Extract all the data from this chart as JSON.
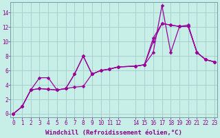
{
  "xlabel": "Windchill (Refroidissement éolien,°C)",
  "bg_color": "#c8eee8",
  "grid_color": "#a0ccc8",
  "line_color": "#990099",
  "xlim": [
    -0.3,
    23.3
  ],
  "ylim": [
    -0.5,
    15.5
  ],
  "xtick_vals": [
    0,
    1,
    2,
    3,
    4,
    5,
    6,
    7,
    8,
    9,
    10,
    11,
    12,
    14,
    15,
    16,
    17,
    18,
    19,
    20,
    21,
    22,
    23
  ],
  "xtick_labels": [
    "0",
    "1",
    "2",
    "3",
    "4",
    "5",
    "6",
    "7",
    "8",
    "9",
    "101112",
    "",
    "",
    "1415161718192021",
    "",
    "",
    "",
    "",
    "",
    "",
    "",
    "2223"
  ],
  "yticks": [
    0,
    2,
    4,
    6,
    8,
    10,
    12,
    14
  ],
  "series1_x": [
    0,
    1,
    2,
    3,
    4,
    5,
    6,
    7,
    8,
    9,
    10,
    11,
    12,
    14,
    15,
    16,
    17,
    18,
    19,
    20,
    21,
    22,
    23
  ],
  "series1_y": [
    0,
    1,
    3.3,
    3.5,
    3.4,
    3.3,
    3.5,
    3.7,
    3.8,
    5.5,
    6.0,
    6.2,
    6.5,
    6.6,
    6.8,
    10.5,
    12.5,
    12.3,
    12.1,
    12.1,
    8.5,
    7.5,
    7.2
  ],
  "series2_x": [
    0,
    1,
    2,
    3,
    4,
    5,
    6,
    7,
    8,
    9,
    10,
    11,
    12,
    14,
    15,
    16,
    17,
    18,
    19,
    20,
    21,
    22,
    23
  ],
  "series2_y": [
    0,
    1,
    3.3,
    5.0,
    5.0,
    3.3,
    3.5,
    5.5,
    8.0,
    5.5,
    6.0,
    6.2,
    6.5,
    6.6,
    6.8,
    8.5,
    15.0,
    8.5,
    12.1,
    12.1,
    8.5,
    7.5,
    7.2
  ],
  "series3_x": [
    0,
    1,
    2,
    3,
    4,
    5,
    6,
    7,
    8,
    9,
    10,
    11,
    12,
    14,
    15,
    16,
    17,
    18,
    19,
    20,
    21,
    22,
    23
  ],
  "series3_y": [
    0,
    1,
    3.3,
    3.5,
    3.4,
    3.3,
    3.5,
    5.5,
    8.0,
    5.5,
    6.0,
    6.2,
    6.5,
    6.6,
    6.8,
    10.0,
    12.5,
    12.3,
    12.1,
    12.3,
    8.5,
    7.5,
    7.2
  ],
  "marker_size": 2.5,
  "line_width": 0.9,
  "font_color": "#880088",
  "tick_fontsize": 5.5,
  "label_fontsize": 6.5
}
